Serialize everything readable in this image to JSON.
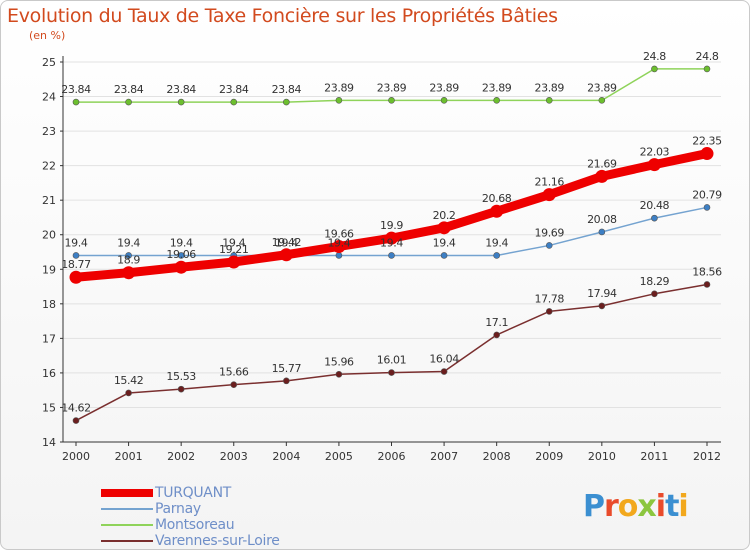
{
  "header": {
    "title": "Evolution du Taux de Taxe Foncière sur les Propriétés Bâties",
    "unit": "(en %)"
  },
  "logo": {
    "letters": [
      "P",
      "r",
      "o",
      "x",
      "i",
      "t",
      "i"
    ],
    "colors": [
      "#3b8fd1",
      "#e94b2b",
      "#f2a81d",
      "#8cc63f",
      "#e94b2b",
      "#3b8fd1",
      "#f2a81d"
    ]
  },
  "chart_data": {
    "type": "line",
    "title": "Evolution du Taux de Taxe Foncière sur les Propriétés Bâties",
    "ylabel": "(en %)",
    "xlabel": "",
    "x": [
      "2000",
      "2001",
      "2002",
      "2003",
      "2004",
      "2005",
      "2006",
      "2007",
      "2008",
      "2009",
      "2010",
      "2011",
      "2012"
    ],
    "ylim": [
      14,
      25
    ],
    "yticks": [
      14,
      15,
      16,
      17,
      18,
      19,
      20,
      21,
      22,
      23,
      24,
      25
    ],
    "grid": "horizontal",
    "legend": "bottom-left",
    "series": [
      {
        "name": "TURQUANT",
        "color": "#ee0000",
        "marker": "#ee0000",
        "values": [
          18.77,
          18.9,
          19.06,
          19.21,
          19.42,
          19.66,
          19.9,
          20.2,
          20.68,
          21.16,
          21.69,
          22.03,
          22.35
        ],
        "labels": [
          "18.77",
          "18.9",
          "19.06",
          "19.21",
          "19.42",
          "19.66",
          "19.9",
          "20.2",
          "20.68",
          "21.16",
          "21.69",
          "22.03",
          "22.35"
        ]
      },
      {
        "name": "Parnay",
        "color": "#74a3d0",
        "marker": "#3d7fc4",
        "values": [
          19.4,
          19.4,
          19.4,
          19.4,
          19.4,
          19.4,
          19.4,
          19.4,
          19.4,
          19.69,
          20.08,
          20.48,
          20.79
        ],
        "labels": [
          "19.4",
          "19.4",
          "19.4",
          "19.4",
          "19.4",
          "19.4",
          "19.4",
          "19.4",
          "19.4",
          "19.69",
          "20.08",
          "20.48",
          "20.79"
        ]
      },
      {
        "name": "Montsoreau",
        "color": "#8fd35a",
        "marker": "#6cbf2e",
        "values": [
          23.84,
          23.84,
          23.84,
          23.84,
          23.84,
          23.89,
          23.89,
          23.89,
          23.89,
          23.89,
          23.89,
          24.8,
          24.8
        ],
        "labels": [
          "23.84",
          "23.84",
          "23.84",
          "23.84",
          "23.84",
          "23.89",
          "23.89",
          "23.89",
          "23.89",
          "23.89",
          "23.89",
          "24.8",
          "24.8"
        ]
      },
      {
        "name": "Varennes-sur-Loire",
        "color": "#7a2f2f",
        "marker": "#6b1e1e",
        "values": [
          14.62,
          15.42,
          15.53,
          15.66,
          15.77,
          15.96,
          16.01,
          16.04,
          17.1,
          17.78,
          17.94,
          18.29,
          18.56
        ],
        "labels": [
          "14.62",
          "15.42",
          "15.53",
          "15.66",
          "15.77",
          "15.96",
          "16.01",
          "16.04",
          "17.1",
          "17.78",
          "17.94",
          "18.29",
          "18.56"
        ]
      }
    ]
  }
}
